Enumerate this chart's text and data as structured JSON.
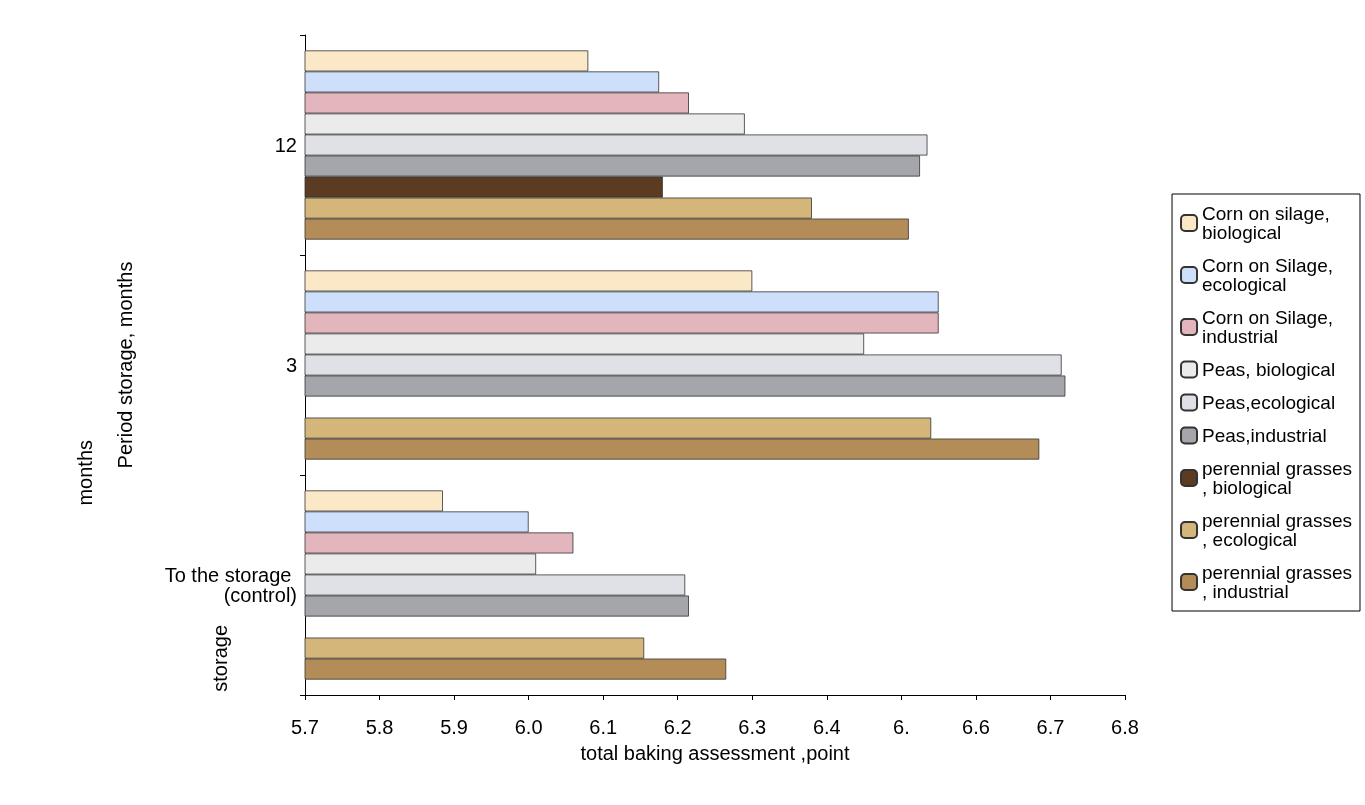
{
  "chart_data": {
    "type": "bar",
    "orientation": "horizontal",
    "xlabel": "total baking assessment ,point",
    "ylabel": "Period storage, months",
    "categories": [
      "12",
      "3",
      "To the storage (control)"
    ],
    "series": [
      {
        "name": "Corn on silage, biological",
        "color": "#fbe8c6",
        "values": [
          6.08,
          6.3,
          5.885
        ]
      },
      {
        "name": "Corn on Silage,ecological",
        "color": "#cddffa",
        "values": [
          6.175,
          6.55,
          6.0
        ]
      },
      {
        "name": "Corn on Silage,industrial",
        "color": "#e3b6bd",
        "values": [
          6.215,
          6.55,
          6.06
        ]
      },
      {
        "name": "Peas, biological",
        "color": "#ebebeb",
        "values": [
          6.29,
          6.45,
          6.01
        ]
      },
      {
        "name": "Peas,ecological",
        "color": "#dfe1e6",
        "values": [
          6.535,
          6.715,
          6.21
        ]
      },
      {
        "name": "Peas,industrial",
        "color": "#a5a6ab",
        "values": [
          6.525,
          6.72,
          6.215
        ]
      },
      {
        "name": "perennial grasses, biological",
        "color": "#5b3b22",
        "values": [
          6.18,
          null,
          null
        ]
      },
      {
        "name": "perennial grasses, ecological",
        "color": "#d4b57a",
        "values": [
          6.38,
          6.54,
          6.155
        ]
      },
      {
        "name": "perennial grasses, industrial",
        "color": "#b48c58",
        "values": [
          6.51,
          6.685,
          6.265
        ]
      }
    ],
    "xlim": [
      5.7,
      6.8
    ],
    "xticks": [
      5.7,
      5.8,
      5.9,
      "6.0",
      6.1,
      6.2,
      6.3,
      6.4,
      {
        "value": 6.5,
        "label": "6."
      },
      6.6,
      6.7,
      6.8
    ],
    "grid": false,
    "legend": "right",
    "annotations": [
      "months",
      "storage"
    ]
  }
}
